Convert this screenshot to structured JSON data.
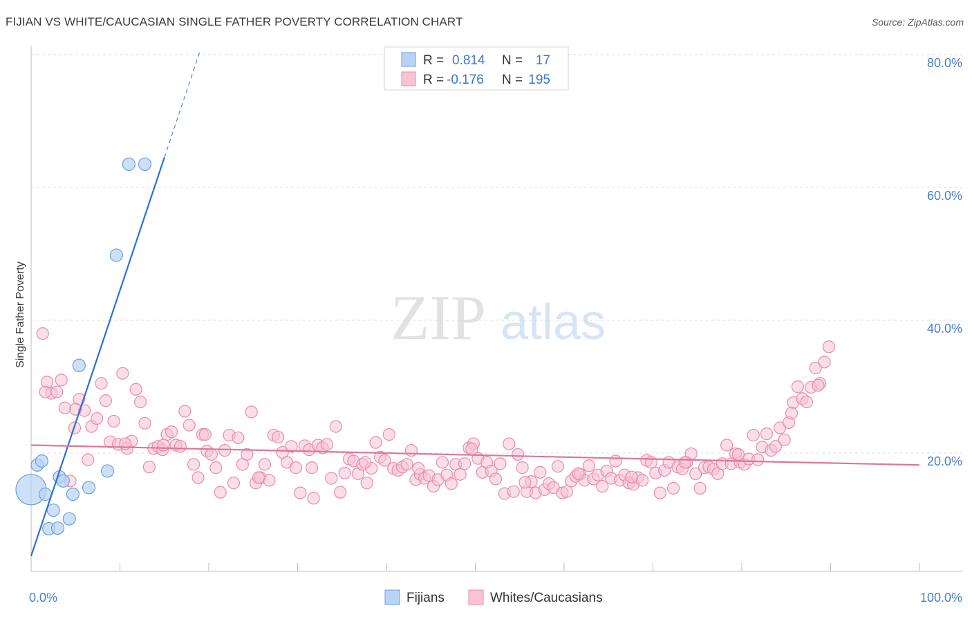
{
  "header": {
    "title": "FIJIAN VS WHITE/CAUCASIAN SINGLE FATHER POVERTY CORRELATION CHART",
    "source": "Source: ZipAtlas.com"
  },
  "watermark": {
    "zip": "ZIP",
    "atlas": "atlas"
  },
  "colors": {
    "fijians_fill": "#b8d3f5",
    "fijians_stroke": "#6a9fe0",
    "fijians_line": "#2c6fd6",
    "whites_fill": "#f8c3d3",
    "whites_stroke": "#e98bab",
    "whites_line": "#e2739b",
    "grid": "#dcdcdc",
    "axis_tick_text": "#4a7fd0"
  },
  "legend": {
    "rows": [
      {
        "r_label": "R =",
        "r_value": "0.814",
        "n_label": "N =",
        "n_value": "17"
      },
      {
        "r_label": "R =",
        "r_value": "-0.176",
        "n_label": "N =",
        "n_value": "195"
      }
    ]
  },
  "bottom_legend": {
    "fijians": "Fijians",
    "whites": "Whites/Caucasians"
  },
  "chart_data": {
    "type": "scatter",
    "xlabel": "",
    "ylabel": "Single Father Poverty",
    "xlim": [
      0,
      100
    ],
    "ylim": [
      0,
      80
    ],
    "x_tick_labels": [
      "0.0%",
      "100.0%"
    ],
    "y_ticks": [
      20,
      40,
      60,
      80
    ],
    "y_tick_labels": [
      "20.0%",
      "40.0%",
      "60.0%",
      "80.0%"
    ],
    "grid": true,
    "series": [
      {
        "name": "Fijians",
        "r": 0.814,
        "n": 17,
        "trend": {
          "x0": 0,
          "y0": 4.5,
          "x1": 15,
          "y1": 64.5,
          "x_dash_end": 19
        },
        "points": [
          [
            0.0,
            14.5
          ],
          [
            0.7,
            18.2
          ],
          [
            1.2,
            18.8
          ],
          [
            1.6,
            13.8
          ],
          [
            2.0,
            8.6
          ],
          [
            2.5,
            11.4
          ],
          [
            3.0,
            8.7
          ],
          [
            3.2,
            16.4
          ],
          [
            3.6,
            15.8
          ],
          [
            4.3,
            10.1
          ],
          [
            4.7,
            13.8
          ],
          [
            5.4,
            33.2
          ],
          [
            6.5,
            14.8
          ],
          [
            8.6,
            17.3
          ],
          [
            9.6,
            49.8
          ],
          [
            11.0,
            63.5
          ],
          [
            12.8,
            63.5
          ]
        ],
        "sizes": [
          22,
          9,
          9,
          9,
          9,
          9,
          9,
          9,
          9,
          9,
          9,
          9,
          9,
          9,
          9,
          9,
          9
        ]
      },
      {
        "name": "Whites/Caucasians",
        "r": -0.176,
        "n": 195,
        "trend": {
          "x0": 0,
          "y0": 21.2,
          "x1": 100,
          "y1": 18.2
        },
        "points": [
          [
            1.3,
            38.0
          ],
          [
            1.8,
            30.7
          ],
          [
            2.3,
            29.0
          ],
          [
            2.9,
            29.2
          ],
          [
            3.4,
            31.0
          ],
          [
            3.8,
            26.8
          ],
          [
            4.4,
            15.8
          ],
          [
            4.9,
            23.8
          ],
          [
            5.4,
            28.1
          ],
          [
            6.0,
            26.4
          ],
          [
            6.4,
            19.0
          ],
          [
            6.8,
            24.0
          ],
          [
            7.4,
            25.2
          ],
          [
            7.9,
            30.5
          ],
          [
            8.4,
            27.9
          ],
          [
            8.9,
            21.7
          ],
          [
            9.3,
            24.8
          ],
          [
            9.8,
            21.3
          ],
          [
            10.3,
            32.0
          ],
          [
            10.8,
            20.7
          ],
          [
            11.3,
            21.8
          ],
          [
            11.8,
            29.6
          ],
          [
            12.3,
            27.7
          ],
          [
            12.8,
            24.5
          ],
          [
            13.3,
            17.9
          ],
          [
            13.8,
            20.7
          ],
          [
            14.3,
            21.0
          ],
          [
            14.8,
            20.5
          ],
          [
            15.3,
            22.8
          ],
          [
            15.8,
            23.2
          ],
          [
            16.3,
            21.2
          ],
          [
            16.8,
            21.0
          ],
          [
            17.3,
            26.3
          ],
          [
            17.8,
            24.2
          ],
          [
            18.3,
            18.3
          ],
          [
            18.8,
            16.3
          ],
          [
            19.3,
            22.8
          ],
          [
            19.8,
            20.3
          ],
          [
            20.3,
            19.8
          ],
          [
            20.8,
            17.8
          ],
          [
            21.3,
            14.1
          ],
          [
            21.8,
            20.4
          ],
          [
            22.3,
            22.7
          ],
          [
            22.8,
            15.5
          ],
          [
            23.3,
            22.3
          ],
          [
            23.8,
            18.3
          ],
          [
            24.3,
            19.8
          ],
          [
            24.8,
            26.2
          ],
          [
            25.3,
            15.5
          ],
          [
            25.8,
            16.3
          ],
          [
            26.3,
            18.3
          ],
          [
            26.8,
            15.9
          ],
          [
            27.3,
            22.7
          ],
          [
            27.8,
            22.4
          ],
          [
            28.3,
            20.1
          ],
          [
            28.8,
            18.6
          ],
          [
            29.3,
            21.0
          ],
          [
            29.8,
            17.8
          ],
          [
            30.3,
            14.0
          ],
          [
            30.8,
            21.1
          ],
          [
            31.3,
            20.5
          ],
          [
            31.8,
            13.2
          ],
          [
            32.3,
            21.2
          ],
          [
            32.8,
            20.8
          ],
          [
            33.3,
            21.3
          ],
          [
            33.8,
            16.2
          ],
          [
            34.3,
            24.0
          ],
          [
            34.8,
            14.1
          ],
          [
            35.3,
            17.0
          ],
          [
            35.8,
            19.1
          ],
          [
            36.3,
            18.8
          ],
          [
            36.8,
            16.9
          ],
          [
            37.3,
            18.3
          ],
          [
            37.8,
            15.5
          ],
          [
            38.3,
            17.7
          ],
          [
            38.8,
            21.6
          ],
          [
            39.3,
            19.4
          ],
          [
            39.8,
            18.9
          ],
          [
            40.3,
            22.8
          ],
          [
            40.8,
            17.7
          ],
          [
            41.3,
            17.4
          ],
          [
            41.8,
            17.9
          ],
          [
            42.3,
            18.3
          ],
          [
            42.8,
            20.4
          ],
          [
            43.3,
            16.0
          ],
          [
            43.8,
            16.8
          ],
          [
            44.3,
            16.2
          ],
          [
            44.8,
            16.6
          ],
          [
            45.3,
            15.0
          ],
          [
            45.8,
            16.0
          ],
          [
            46.3,
            18.6
          ],
          [
            46.8,
            16.7
          ],
          [
            47.3,
            15.4
          ],
          [
            47.8,
            18.3
          ],
          [
            48.3,
            16.8
          ],
          [
            48.8,
            18.4
          ],
          [
            49.3,
            20.8
          ],
          [
            49.8,
            21.4
          ],
          [
            50.3,
            19.2
          ],
          [
            50.8,
            17.1
          ],
          [
            51.3,
            18.6
          ],
          [
            51.8,
            17.3
          ],
          [
            52.3,
            16.1
          ],
          [
            52.8,
            18.4
          ],
          [
            53.3,
            13.9
          ],
          [
            53.8,
            21.4
          ],
          [
            54.3,
            14.2
          ],
          [
            54.8,
            19.8
          ],
          [
            55.3,
            17.8
          ],
          [
            55.8,
            14.2
          ],
          [
            56.3,
            15.7
          ],
          [
            56.8,
            14.0
          ],
          [
            57.3,
            17.1
          ],
          [
            57.8,
            14.5
          ],
          [
            58.3,
            15.4
          ],
          [
            58.8,
            14.8
          ],
          [
            59.3,
            18.0
          ],
          [
            59.8,
            14.0
          ],
          [
            60.3,
            14.2
          ],
          [
            60.8,
            15.8
          ],
          [
            61.3,
            16.5
          ],
          [
            61.8,
            16.8
          ],
          [
            62.3,
            15.9
          ],
          [
            62.8,
            18.1
          ],
          [
            63.3,
            16.1
          ],
          [
            63.8,
            16.7
          ],
          [
            64.3,
            15.0
          ],
          [
            64.8,
            17.3
          ],
          [
            65.3,
            16.2
          ],
          [
            65.8,
            18.8
          ],
          [
            66.3,
            15.9
          ],
          [
            66.8,
            16.7
          ],
          [
            67.3,
            15.5
          ],
          [
            67.8,
            15.3
          ],
          [
            68.3,
            16.3
          ],
          [
            68.8,
            15.9
          ],
          [
            69.3,
            18.9
          ],
          [
            69.8,
            18.6
          ],
          [
            70.3,
            17.0
          ],
          [
            70.8,
            14.0
          ],
          [
            71.3,
            17.4
          ],
          [
            71.8,
            18.6
          ],
          [
            72.3,
            14.7
          ],
          [
            72.8,
            17.9
          ],
          [
            73.3,
            17.6
          ],
          [
            73.8,
            18.6
          ],
          [
            74.3,
            19.9
          ],
          [
            74.8,
            16.9
          ],
          [
            75.3,
            14.7
          ],
          [
            75.8,
            17.8
          ],
          [
            76.3,
            17.9
          ],
          [
            76.8,
            17.6
          ],
          [
            77.3,
            16.9
          ],
          [
            77.8,
            18.4
          ],
          [
            78.3,
            21.2
          ],
          [
            78.8,
            18.4
          ],
          [
            79.3,
            19.9
          ],
          [
            79.8,
            18.6
          ],
          [
            80.3,
            18.3
          ],
          [
            80.8,
            19.1
          ],
          [
            81.3,
            22.7
          ],
          [
            81.8,
            19.0
          ],
          [
            82.3,
            20.9
          ],
          [
            82.8,
            22.9
          ],
          [
            83.3,
            20.4
          ],
          [
            83.8,
            21.0
          ],
          [
            84.3,
            23.8
          ],
          [
            84.8,
            22.0
          ],
          [
            85.3,
            24.6
          ],
          [
            85.8,
            27.6
          ],
          [
            86.3,
            30.0
          ],
          [
            86.8,
            28.2
          ],
          [
            87.3,
            27.7
          ],
          [
            87.8,
            29.9
          ],
          [
            88.3,
            32.8
          ],
          [
            88.8,
            30.5
          ],
          [
            89.3,
            33.7
          ],
          [
            89.8,
            36.0
          ],
          [
            1.6,
            29.2
          ],
          [
            5.0,
            26.6
          ],
          [
            10.6,
            21.4
          ],
          [
            14.9,
            21.2
          ],
          [
            19.6,
            22.8
          ],
          [
            25.6,
            16.3
          ],
          [
            31.6,
            17.8
          ],
          [
            37.6,
            18.6
          ],
          [
            43.6,
            17.7
          ],
          [
            49.6,
            20.6
          ],
          [
            55.6,
            15.6
          ],
          [
            61.6,
            16.9
          ],
          [
            67.6,
            16.4
          ],
          [
            73.6,
            18.6
          ],
          [
            79.6,
            19.8
          ],
          [
            85.6,
            26.0
          ],
          [
            88.6,
            30.2
          ]
        ],
        "sizes": []
      }
    ]
  }
}
